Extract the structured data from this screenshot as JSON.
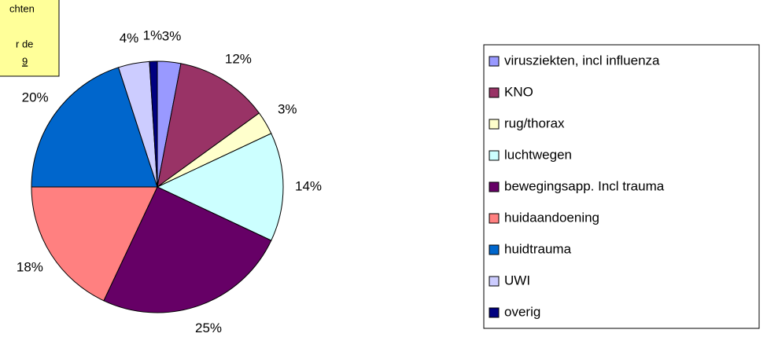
{
  "chart_data": {
    "type": "pie",
    "annotation_lines": [
      "chten",
      "r de",
      "9"
    ],
    "categories": [
      "virusziekten, incl influenza",
      "KNO",
      "rug/thorax",
      "luchtwegen",
      "bewegingsapp. Incl trauma",
      "huidaandoening",
      "huidtrauma",
      "UWI",
      "overig"
    ],
    "values": [
      3,
      12,
      3,
      14,
      25,
      18,
      20,
      4,
      1
    ],
    "value_labels": [
      "3%",
      "12%",
      "3%",
      "14%",
      "25%",
      "18%",
      "20%",
      "4%",
      "1%"
    ],
    "colors": [
      "#9999ff",
      "#993366",
      "#ffffcc",
      "#ccffff",
      "#660066",
      "#ff8080",
      "#0066cc",
      "#ccccff",
      "#000080"
    ],
    "legend": "right"
  }
}
